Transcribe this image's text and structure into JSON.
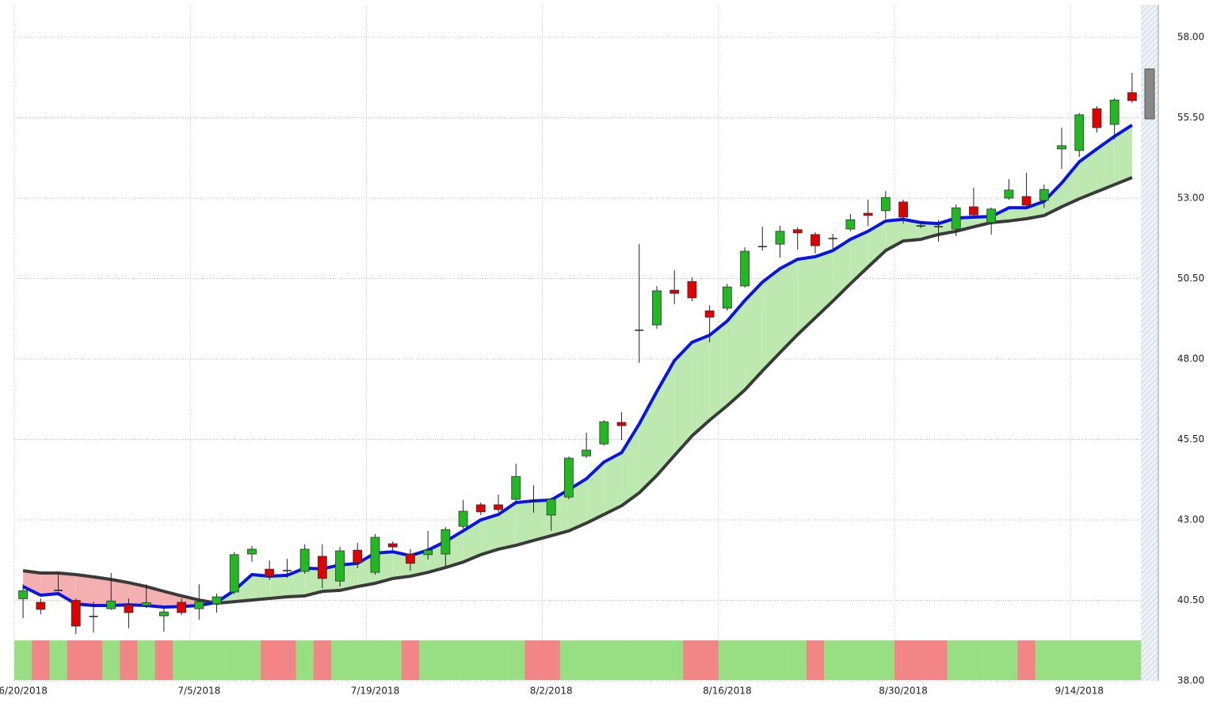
{
  "chart_data": {
    "type": "candlestick",
    "categories": [
      "6/20/2018",
      null,
      null,
      null,
      null,
      null,
      null,
      null,
      null,
      null,
      "7/5/2018",
      null,
      null,
      null,
      null,
      null,
      null,
      null,
      null,
      null,
      "7/19/2018",
      null,
      null,
      null,
      null,
      null,
      null,
      null,
      null,
      null,
      "8/2/2018",
      null,
      null,
      null,
      null,
      null,
      null,
      null,
      null,
      null,
      "8/16/2018",
      null,
      null,
      null,
      null,
      null,
      null,
      null,
      null,
      null,
      "8/30/2018",
      null,
      null,
      null,
      null,
      null,
      null,
      null,
      null,
      null,
      "9/14/2018",
      null,
      null,
      null
    ],
    "open": [
      40.55,
      40.44,
      40.8,
      40.5,
      40.0,
      40.24,
      40.36,
      40.34,
      40.02,
      40.44,
      40.24,
      40.39,
      40.76,
      41.94,
      41.47,
      41.42,
      41.4,
      41.87,
      41.1,
      42.06,
      41.37,
      42.26,
      41.94,
      41.92,
      41.94,
      42.8,
      43.47,
      43.47,
      43.64,
      43.59,
      43.15,
      43.71,
      44.99,
      45.36,
      46.03,
      48.9,
      49.06,
      50.14,
      50.41,
      49.5,
      49.58,
      50.27,
      51.5,
      51.57,
      52.02,
      51.87,
      51.74,
      52.04,
      52.53,
      52.61,
      52.88,
      52.14,
      52.11,
      52.04,
      52.73,
      52.24,
      53.0,
      53.05,
      52.93,
      54.53,
      54.48,
      55.78,
      55.29,
      56.28
    ],
    "high": [
      41.0,
      40.56,
      41.35,
      40.56,
      40.45,
      41.35,
      40.56,
      41.0,
      40.26,
      40.56,
      41.0,
      40.71,
      42.0,
      42.19,
      41.74,
      41.79,
      42.24,
      42.24,
      42.16,
      42.29,
      42.56,
      42.33,
      42.09,
      42.66,
      42.78,
      43.62,
      43.54,
      43.79,
      44.75,
      44.08,
      43.69,
      44.97,
      45.71,
      46.1,
      46.35,
      51.57,
      50.27,
      50.76,
      50.54,
      49.67,
      50.34,
      51.47,
      52.11,
      52.14,
      52.09,
      51.94,
      51.89,
      52.51,
      52.95,
      53.22,
      52.95,
      52.26,
      52.31,
      52.8,
      53.32,
      52.71,
      53.59,
      53.79,
      53.42,
      55.19,
      55.64,
      55.86,
      56.1,
      56.89
    ],
    "low": [
      39.95,
      40.07,
      40.78,
      39.45,
      39.5,
      40.2,
      39.63,
      40.26,
      39.53,
      40.04,
      39.9,
      40.12,
      40.69,
      41.7,
      41.13,
      41.2,
      41.33,
      40.88,
      40.93,
      41.5,
      41.3,
      42.06,
      41.42,
      41.77,
      41.55,
      42.73,
      43.15,
      43.25,
      43.57,
      43.22,
      42.66,
      43.64,
      44.92,
      45.31,
      45.49,
      47.88,
      48.94,
      49.7,
      49.8,
      48.52,
      49.5,
      50.22,
      51.37,
      51.15,
      51.4,
      51.28,
      51.4,
      51.97,
      52.14,
      52.36,
      52.21,
      52.06,
      51.65,
      51.82,
      52.36,
      51.87,
      52.95,
      52.7,
      52.7,
      53.91,
      54.28,
      55.04,
      54.82,
      55.96
    ],
    "close": [
      40.8,
      40.22,
      40.82,
      39.7,
      40.0,
      40.48,
      40.12,
      40.43,
      40.14,
      40.12,
      40.46,
      40.61,
      41.92,
      42.09,
      41.25,
      41.43,
      42.09,
      41.18,
      42.04,
      41.67,
      42.46,
      42.16,
      41.65,
      42.06,
      42.7,
      43.27,
      43.25,
      43.32,
      44.35,
      43.6,
      43.64,
      44.92,
      45.17,
      46.05,
      45.93,
      48.89,
      50.12,
      50.04,
      49.9,
      49.3,
      50.24,
      51.35,
      51.49,
      51.97,
      51.92,
      51.52,
      51.75,
      52.33,
      52.46,
      53.02,
      52.41,
      52.13,
      52.12,
      52.7,
      52.48,
      52.66,
      53.25,
      52.78,
      53.27,
      54.63,
      55.59,
      55.19,
      56.05,
      56.03
    ],
    "ma_fast": [
      40.93,
      40.66,
      40.71,
      40.39,
      40.34,
      40.34,
      40.36,
      40.34,
      40.29,
      40.31,
      40.34,
      40.44,
      40.81,
      41.3,
      41.25,
      41.28,
      41.5,
      41.48,
      41.6,
      41.65,
      41.97,
      42.01,
      41.89,
      42.06,
      42.33,
      42.66,
      43.0,
      43.17,
      43.54,
      43.59,
      43.62,
      43.94,
      44.28,
      44.8,
      45.09,
      45.98,
      46.99,
      47.95,
      48.52,
      48.74,
      49.18,
      49.82,
      50.39,
      50.81,
      51.1,
      51.18,
      51.37,
      51.72,
      51.97,
      52.29,
      52.34,
      52.24,
      52.21,
      52.38,
      52.41,
      52.43,
      52.7,
      52.7,
      52.9,
      53.47,
      54.13,
      54.53,
      54.92,
      55.27
    ],
    "ma_slow": [
      41.42,
      41.35,
      41.35,
      41.3,
      41.23,
      41.15,
      41.05,
      40.93,
      40.78,
      40.64,
      40.51,
      40.41,
      40.46,
      40.51,
      40.56,
      40.61,
      40.64,
      40.78,
      40.81,
      40.93,
      41.03,
      41.18,
      41.25,
      41.37,
      41.52,
      41.69,
      41.92,
      42.09,
      42.21,
      42.36,
      42.51,
      42.66,
      42.9,
      43.17,
      43.44,
      43.84,
      44.38,
      45.0,
      45.61,
      46.1,
      46.55,
      47.04,
      47.63,
      48.2,
      48.76,
      49.28,
      49.8,
      50.34,
      50.86,
      51.37,
      51.67,
      51.72,
      51.87,
      51.97,
      52.11,
      52.24,
      52.29,
      52.36,
      52.46,
      52.73,
      52.98,
      53.2,
      53.42,
      53.64
    ],
    "signal_colors": [
      "#98df84",
      "#f28585",
      "#98df84",
      "#f28585",
      "#f28585",
      "#98df84",
      "#f28585",
      "#98df84",
      "#f28585",
      "#98df84",
      "#98df84",
      "#98df84",
      "#98df84",
      "#98df84",
      "#f28585",
      "#f28585",
      "#98df84",
      "#f28585",
      "#98df84",
      "#98df84",
      "#98df84",
      "#98df84",
      "#f28585",
      "#98df84",
      "#98df84",
      "#98df84",
      "#98df84",
      "#98df84",
      "#98df84",
      "#f28585",
      "#f28585",
      "#98df84",
      "#98df84",
      "#98df84",
      "#98df84",
      "#98df84",
      "#98df84",
      "#98df84",
      "#f28585",
      "#f28585",
      "#98df84",
      "#98df84",
      "#98df84",
      "#98df84",
      "#98df84",
      "#f28585",
      "#98df84",
      "#98df84",
      "#98df84",
      "#98df84",
      "#f28585",
      "#f28585",
      "#f28585",
      "#98df84",
      "#98df84",
      "#98df84",
      "#98df84",
      "#f28585",
      "#98df84",
      "#98df84",
      "#98df84",
      "#98df84",
      "#98df84",
      "#98df84"
    ],
    "up_color": "#22b822",
    "down_color": "#e00000",
    "fast_color": "#0a14e6",
    "slow_color": "#3a3a3a",
    "band_up_color": "#bde9b0",
    "band_down_color": "#f4b0b0",
    "ylim": [
      38,
      59
    ],
    "yticks": [
      {
        "value": 38,
        "label": "38.00"
      },
      {
        "value": 40.5,
        "label": "40.50"
      },
      {
        "value": 43,
        "label": "43.00"
      },
      {
        "value": 45.5,
        "label": "45.50"
      },
      {
        "value": 48,
        "label": "48.00"
      },
      {
        "value": 50.5,
        "label": "50.50"
      },
      {
        "value": 53,
        "label": "53.00"
      },
      {
        "value": 55.5,
        "label": "55.50"
      },
      {
        "value": 58,
        "label": "58.00"
      }
    ],
    "grid": true
  }
}
